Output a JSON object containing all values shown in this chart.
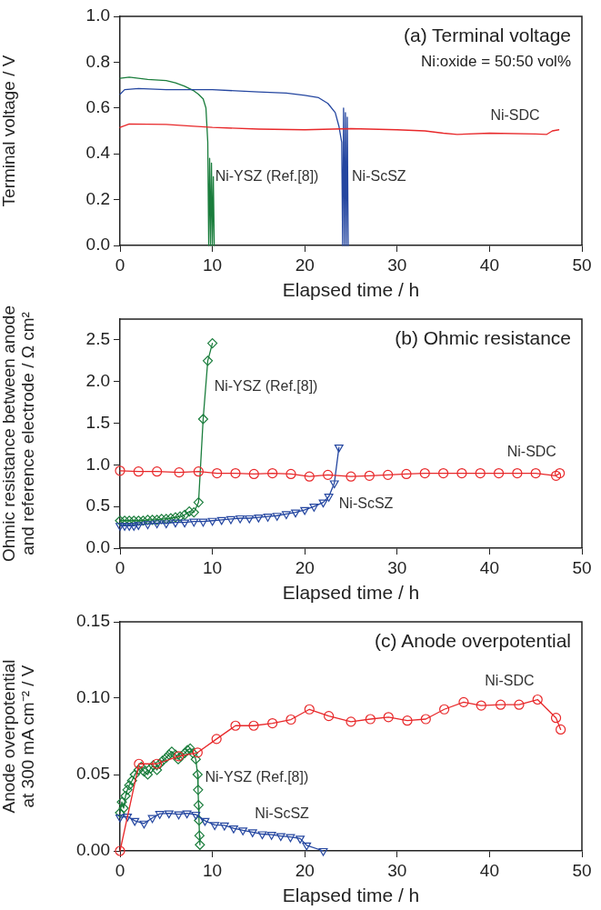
{
  "chart_data": [
    {
      "type": "line",
      "title": "(a) Terminal voltage",
      "subtitle": "Ni:oxide = 50:50 vol%",
      "xlabel": "Elapsed time / h",
      "ylabel": "Terminal voltage / V",
      "xlim": [
        0,
        50
      ],
      "ylim": [
        0,
        1
      ],
      "xticks": [
        0,
        10,
        20,
        30,
        40,
        50
      ],
      "yticks": [
        {
          "value": 0,
          "label": "0.0"
        },
        0.2,
        0.4,
        0.6,
        0.8,
        {
          "value": 1,
          "label": "1.0"
        }
      ],
      "legend": false,
      "grid": false,
      "marker": "none",
      "line_style": "solid",
      "series": [
        {
          "name": "Ni-YSZ (Ref.[8])",
          "color": "#1a7d3c",
          "x": [
            0,
            1,
            3,
            5,
            6,
            7,
            8,
            8.5,
            9,
            9.3,
            9.5,
            9.6,
            9.7,
            9.8,
            9.9,
            10,
            10.1,
            10.2
          ],
          "values": [
            0.73,
            0.735,
            0.725,
            0.72,
            0.71,
            0.695,
            0.675,
            0.66,
            0.64,
            0.6,
            0.45,
            0,
            0.38,
            0,
            0.36,
            0,
            0.3,
            0
          ]
        },
        {
          "name": "Ni-ScSZ",
          "color": "#2446a0",
          "x": [
            0,
            0.5,
            2,
            5,
            10,
            15,
            18,
            20,
            21.5,
            22.5,
            23.3,
            23.7,
            24,
            24.1,
            24.2,
            24.3,
            24.4,
            24.5,
            24.6,
            24.7
          ],
          "values": [
            0.66,
            0.68,
            0.685,
            0.68,
            0.68,
            0.67,
            0.665,
            0.655,
            0.645,
            0.62,
            0.58,
            0.52,
            0.45,
            0,
            0.6,
            0,
            0.58,
            0,
            0.56,
            0
          ]
        },
        {
          "name": "Ni-SDC",
          "color": "#e8282a",
          "x": [
            0,
            1,
            5,
            8,
            10,
            15,
            20,
            25,
            30,
            33,
            35,
            36.5,
            40,
            45,
            46.2,
            46.8,
            47.5
          ],
          "values": [
            0.515,
            0.53,
            0.528,
            0.52,
            0.515,
            0.508,
            0.505,
            0.51,
            0.505,
            0.5,
            0.49,
            0.485,
            0.49,
            0.487,
            0.485,
            0.5,
            0.505
          ]
        }
      ]
    },
    {
      "type": "line",
      "title": "(b) Ohmic resistance",
      "xlabel": "Elapsed time / h",
      "ylabel": "Ohmic resistance between anode and reference electrode / Ω cm²",
      "xlim": [
        0,
        50
      ],
      "ylim": [
        0,
        2.75
      ],
      "xticks": [
        0,
        10,
        20,
        30,
        40,
        50
      ],
      "yticks": [
        {
          "value": 0,
          "label": "0.0"
        },
        0.5,
        {
          "value": 1,
          "label": "1.0"
        },
        1.5,
        {
          "value": 2,
          "label": "2.0"
        },
        2.5
      ],
      "legend": false,
      "grid": false,
      "line_style": "solid",
      "series": [
        {
          "name": "Ni-YSZ (Ref.[8])",
          "color": "#1a7d3c",
          "marker": "diamond",
          "x": [
            0,
            0.5,
            1,
            1.5,
            2,
            2.5,
            3,
            3.5,
            4,
            4.5,
            5,
            5.5,
            6,
            6.5,
            7,
            7.5,
            8,
            8.5,
            9,
            9.5,
            10
          ],
          "values": [
            0.33,
            0.33,
            0.33,
            0.33,
            0.33,
            0.33,
            0.34,
            0.34,
            0.34,
            0.35,
            0.35,
            0.36,
            0.37,
            0.38,
            0.4,
            0.44,
            0.43,
            0.55,
            1.55,
            2.25,
            2.46
          ]
        },
        {
          "name": "Ni-ScSZ",
          "color": "#2446a0",
          "marker": "triangle",
          "x": [
            0,
            0.5,
            1,
            1.5,
            2,
            3,
            4,
            5,
            6,
            7,
            8,
            9,
            10,
            11,
            12,
            13,
            14,
            15,
            16,
            17,
            18,
            19,
            20,
            21,
            22,
            22.6,
            23.2,
            23.7
          ],
          "values": [
            0.27,
            0.27,
            0.27,
            0.27,
            0.28,
            0.29,
            0.3,
            0.3,
            0.31,
            0.31,
            0.32,
            0.32,
            0.33,
            0.34,
            0.35,
            0.36,
            0.36,
            0.37,
            0.38,
            0.39,
            0.41,
            0.43,
            0.46,
            0.5,
            0.55,
            0.62,
            0.78,
            1.21
          ]
        },
        {
          "name": "Ni-SDC",
          "color": "#e8282a",
          "marker": "circle",
          "x": [
            0,
            2,
            4,
            6.4,
            8.5,
            10.5,
            12.5,
            14.5,
            16.5,
            18.5,
            20.5,
            22.5,
            25,
            27,
            29,
            31,
            33,
            35,
            37,
            39,
            41,
            43,
            45,
            47.2,
            47.6
          ],
          "values": [
            0.93,
            0.92,
            0.92,
            0.91,
            0.92,
            0.9,
            0.9,
            0.89,
            0.9,
            0.89,
            0.86,
            0.88,
            0.86,
            0.87,
            0.88,
            0.89,
            0.9,
            0.9,
            0.9,
            0.9,
            0.9,
            0.9,
            0.9,
            0.87,
            0.9
          ]
        }
      ]
    },
    {
      "type": "line",
      "title": "(c) Anode overpotential",
      "xlabel": "Elapsed time / h",
      "ylabel": "Anode overpotential at 300 mA cm⁻² / V",
      "xlim": [
        0,
        50
      ],
      "ylim": [
        0,
        0.15
      ],
      "xticks": [
        0,
        10,
        20,
        30,
        40,
        50
      ],
      "yticks": [
        {
          "value": 0,
          "label": "0.00"
        },
        {
          "value": 0.05,
          "label": "0.05"
        },
        {
          "value": 0.1,
          "label": "0.10"
        },
        {
          "value": 0.15,
          "label": "0.15"
        }
      ],
      "legend": false,
      "grid": false,
      "line_style": "solid",
      "series": [
        {
          "name": "Ni-YSZ (Ref.[8])",
          "color": "#1a7d3c",
          "marker": "diamond",
          "x": [
            0,
            0.2,
            0.4,
            0.6,
            0.8,
            1,
            1.3,
            1.6,
            2,
            2.3,
            2.6,
            3,
            3.3,
            3.6,
            4,
            4.3,
            4.6,
            5,
            5.3,
            5.6,
            6,
            6.3,
            6.6,
            7,
            7.3,
            7.6,
            7.9,
            8.2,
            8.4,
            8.45,
            8.5,
            8.55,
            8.6,
            8.65
          ],
          "values": [
            0.025,
            0.032,
            0.028,
            0.036,
            0.04,
            0.043,
            0.046,
            0.05,
            0.053,
            0.055,
            0.052,
            0.05,
            0.054,
            0.056,
            0.053,
            0.057,
            0.059,
            0.061,
            0.063,
            0.065,
            0.063,
            0.06,
            0.062,
            0.064,
            0.066,
            0.067,
            0.064,
            0.06,
            0.05,
            0.04,
            0.03,
            0.02,
            0.01,
            0.004
          ]
        },
        {
          "name": "Ni-ScSZ",
          "color": "#2446a0",
          "marker": "triangle",
          "x": [
            0,
            0.8,
            1.6,
            2.6,
            3.5,
            4.3,
            5.3,
            6.35,
            7.25,
            8.2,
            9.2,
            10.25,
            11.3,
            12.3,
            13.3,
            14.35,
            15.4,
            16.4,
            17.4,
            18.45,
            19.5,
            20.2,
            22
          ],
          "values": [
            0.022,
            0.0226,
            0.0197,
            0.018,
            0.0216,
            0.0243,
            0.0246,
            0.024,
            0.0246,
            0.0238,
            0.0197,
            0.017,
            0.0167,
            0.0148,
            0.0135,
            0.0123,
            0.011,
            0.0106,
            0.0098,
            0.0091,
            0.0081,
            0.0037,
            0
          ]
        },
        {
          "name": "Ni-SDC",
          "color": "#e8282a",
          "marker": "circle",
          "x": [
            0,
            2.05,
            4,
            6.35,
            8.4,
            10.45,
            12.5,
            14.47,
            16.5,
            18.5,
            20.5,
            22.6,
            25,
            27.1,
            29.06,
            31.1,
            33.1,
            35.1,
            37.2,
            39.1,
            41.2,
            43.2,
            45.2,
            47.2,
            47.7
          ],
          "values": [
            0,
            0.057,
            0.057,
            0.062,
            0.0644,
            0.0733,
            0.082,
            0.082,
            0.0836,
            0.086,
            0.0927,
            0.0883,
            0.0846,
            0.0863,
            0.0876,
            0.0853,
            0.0863,
            0.0927,
            0.0974,
            0.0952,
            0.0957,
            0.0957,
            0.0991,
            0.0871,
            0.0795
          ]
        }
      ]
    }
  ]
}
